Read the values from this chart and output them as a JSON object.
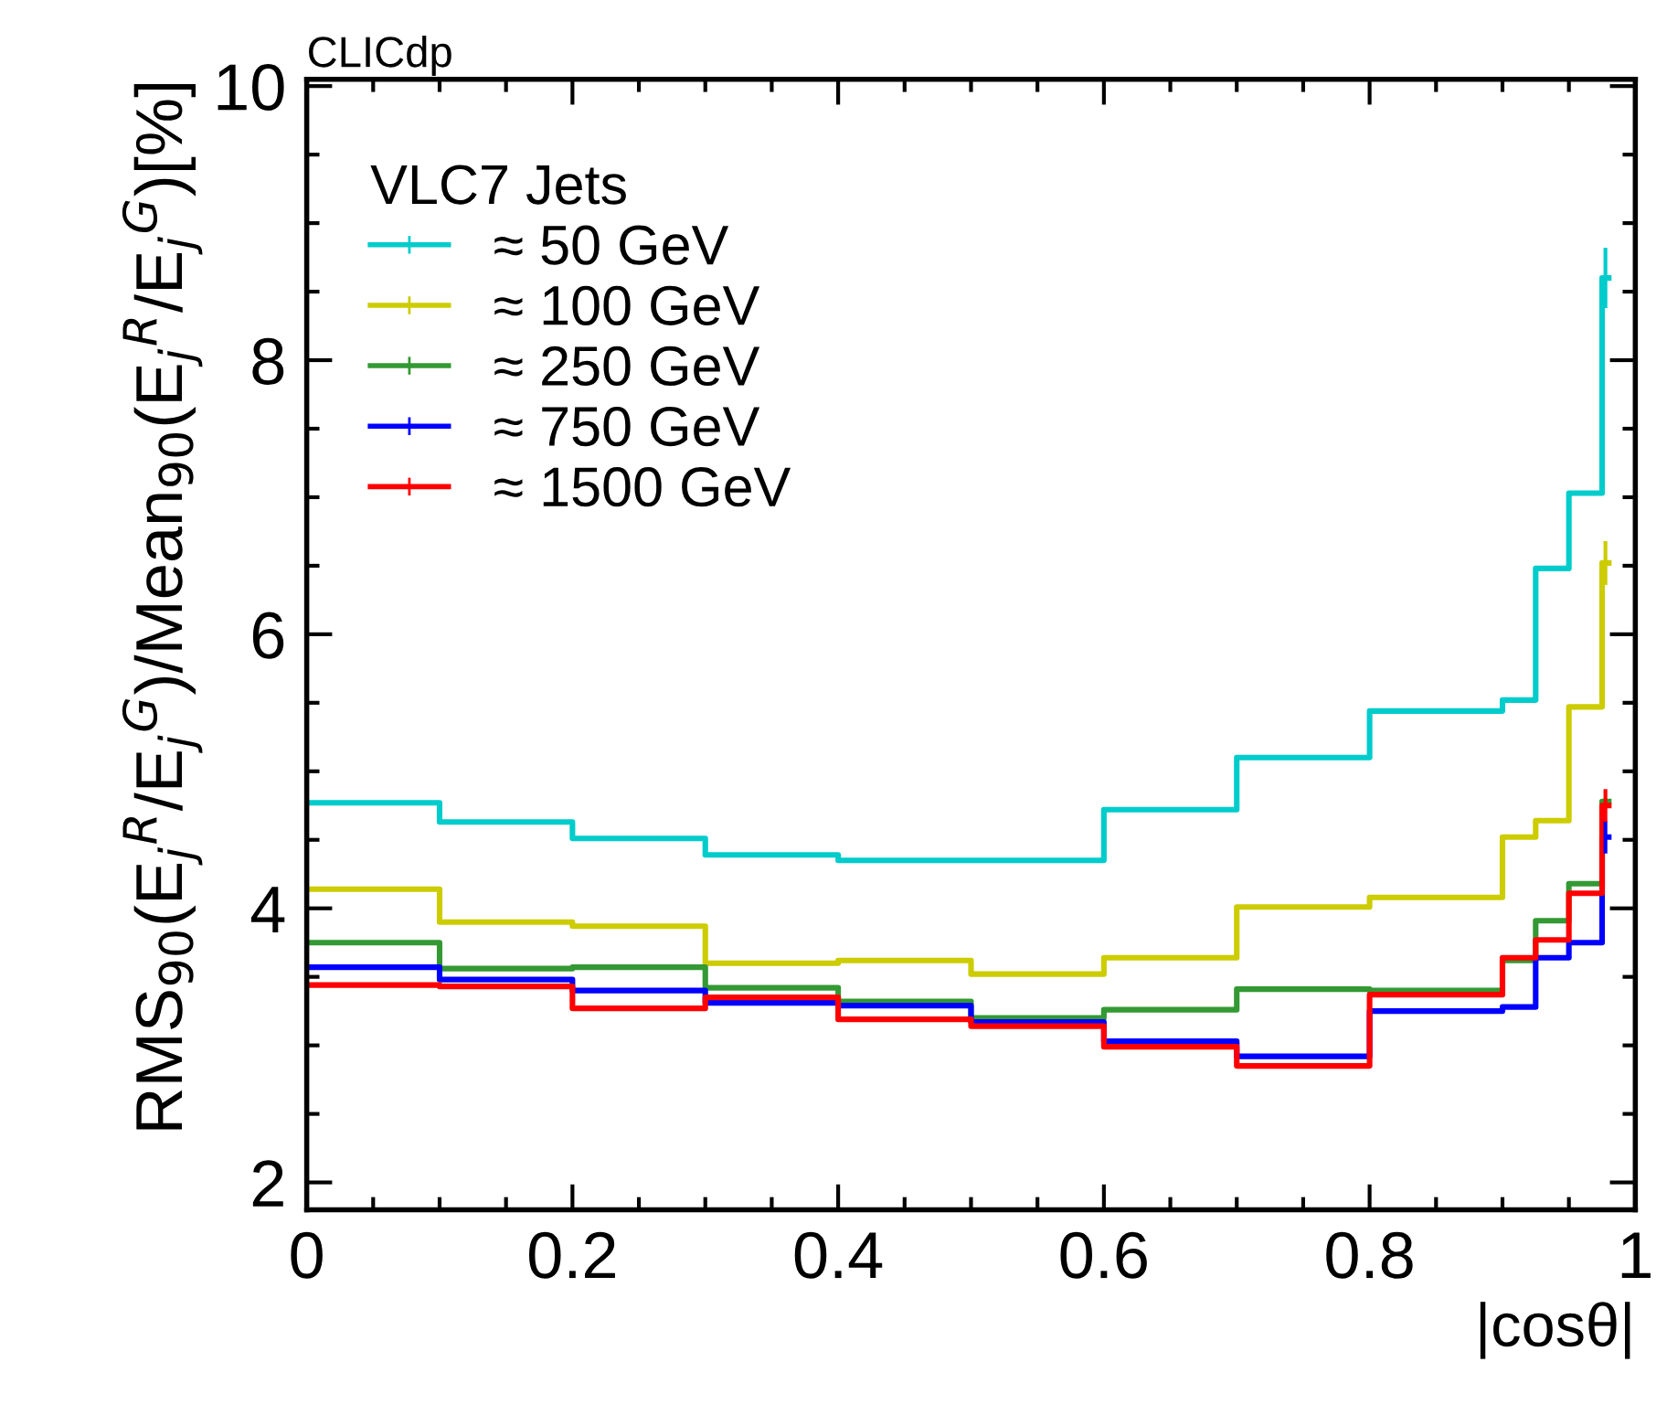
{
  "chart_data": {
    "type": "histogram",
    "xlabel": "|cosθ|",
    "ylabel": "RMS$_{90}$(E$_{j}$$^{R}$/E$_{j}$$^{G}$)/Mean$_{90}$(E$_{j}$$^{R}$/E$_{j}$$^{G}$)[%]",
    "legend_title": "VLC7 Jets",
    "annotations": [
      "CLICdp"
    ],
    "bins": [
      0,
      0.1,
      0.2,
      0.3,
      0.4,
      0.5,
      0.6,
      0.7,
      0.8,
      0.9,
      0.925,
      0.95,
      0.975,
      0.98
    ],
    "series": [
      {
        "name": "≈ 50 GeV",
        "color": "#00cccc",
        "values": [
          4.77,
          4.63,
          4.51,
          4.39,
          4.35,
          4.35,
          4.72,
          5.1,
          5.44,
          5.52,
          6.48,
          7.03,
          8.6
        ],
        "errors": [
          null,
          null,
          null,
          null,
          null,
          null,
          null,
          null,
          null,
          null,
          null,
          null,
          0.22
        ]
      },
      {
        "name": "≈ 100 GeV",
        "color": "#cccc00",
        "values": [
          4.14,
          3.9,
          3.87,
          3.6,
          3.62,
          3.52,
          3.64,
          4.01,
          4.08,
          4.52,
          4.64,
          5.47,
          6.52
        ],
        "errors": [
          null,
          null,
          null,
          null,
          null,
          null,
          null,
          null,
          null,
          null,
          null,
          null,
          0.16
        ]
      },
      {
        "name": "≈ 250 GeV",
        "color": "#339933",
        "values": [
          3.75,
          3.56,
          3.57,
          3.42,
          3.32,
          3.2,
          3.26,
          3.41,
          3.4,
          3.62,
          3.91,
          4.18,
          4.78
        ]
      },
      {
        "name": "≈ 750 GeV",
        "color": "#0000ff",
        "values": [
          3.57,
          3.48,
          3.4,
          3.31,
          3.29,
          3.17,
          3.03,
          2.92,
          3.25,
          3.28,
          3.64,
          3.75,
          4.52
        ],
        "errors": [
          null,
          null,
          null,
          null,
          null,
          null,
          null,
          null,
          null,
          null,
          null,
          null,
          0.12
        ]
      },
      {
        "name": "≈ 1500 GeV",
        "color": "#ff0000",
        "values": [
          3.44,
          3.43,
          3.27,
          3.35,
          3.19,
          3.14,
          2.99,
          2.85,
          3.37,
          3.64,
          3.77,
          4.11,
          4.75
        ],
        "errors": [
          null,
          null,
          null,
          null,
          null,
          null,
          null,
          null,
          null,
          null,
          null,
          null,
          0.12
        ]
      }
    ],
    "xlim": [
      0,
      1.0
    ],
    "ylim": [
      1.8,
      10.05
    ],
    "xticks": [
      0,
      0.2,
      0.4,
      0.6,
      0.8,
      1
    ],
    "yticks": [
      2,
      4,
      6,
      8,
      10
    ],
    "legend": "top left",
    "grid": false
  }
}
